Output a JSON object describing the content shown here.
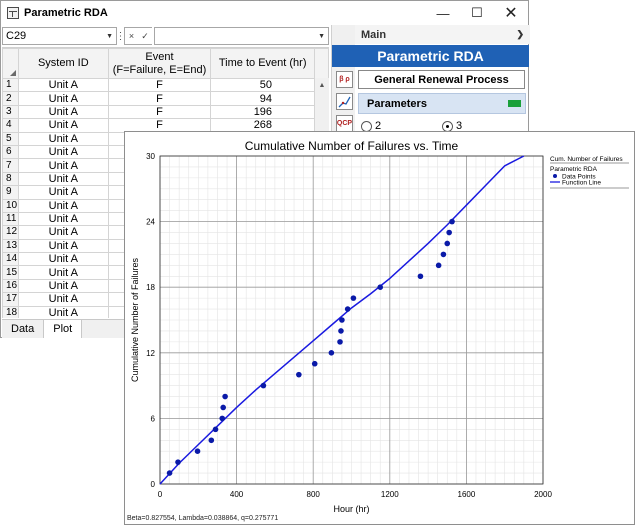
{
  "window": {
    "title": "Parametric RDA"
  },
  "formula_bar": {
    "cell_ref": "C29",
    "cancel_symbol": "×",
    "accept_symbol": "✓"
  },
  "grid": {
    "columns": [
      "System ID",
      "Event\n(F=Failure, E=End)",
      "Time to Event (hr)"
    ],
    "rows": [
      {
        "n": "1",
        "system": "Unit A",
        "event": "F",
        "time": "50"
      },
      {
        "n": "2",
        "system": "Unit A",
        "event": "F",
        "time": "94"
      },
      {
        "n": "3",
        "system": "Unit A",
        "event": "F",
        "time": "196"
      },
      {
        "n": "4",
        "system": "Unit A",
        "event": "F",
        "time": "268"
      },
      {
        "n": "5",
        "system": "Unit A",
        "event": "",
        "time": ""
      },
      {
        "n": "6",
        "system": "Unit A",
        "event": "",
        "time": ""
      },
      {
        "n": "7",
        "system": "Unit A",
        "event": "",
        "time": ""
      },
      {
        "n": "8",
        "system": "Unit A",
        "event": "",
        "time": ""
      },
      {
        "n": "9",
        "system": "Unit A",
        "event": "",
        "time": ""
      },
      {
        "n": "10",
        "system": "Unit A",
        "event": "",
        "time": ""
      },
      {
        "n": "11",
        "system": "Unit A",
        "event": "",
        "time": ""
      },
      {
        "n": "12",
        "system": "Unit A",
        "event": "",
        "time": ""
      },
      {
        "n": "13",
        "system": "Unit A",
        "event": "",
        "time": ""
      },
      {
        "n": "14",
        "system": "Unit A",
        "event": "",
        "time": ""
      },
      {
        "n": "15",
        "system": "Unit A",
        "event": "",
        "time": ""
      },
      {
        "n": "16",
        "system": "Unit A",
        "event": "",
        "time": ""
      },
      {
        "n": "17",
        "system": "Unit A",
        "event": "",
        "time": ""
      },
      {
        "n": "18",
        "system": "Unit A",
        "event": "",
        "time": ""
      }
    ]
  },
  "sheet_tabs": [
    "Data",
    "Plot"
  ],
  "panel": {
    "header": "Main",
    "banner": "Parametric RDA",
    "model": "General Renewal Process",
    "parameters_label": "Parameters",
    "radio_options": [
      {
        "label": "2",
        "selected": false
      },
      {
        "label": "3",
        "selected": true
      }
    ],
    "tools": [
      "β ρ",
      "",
      "QCP"
    ]
  },
  "colors": {
    "banner": "#1f61b5",
    "series": "#0a1aa8",
    "status": "#1aa03a"
  },
  "plot": {
    "footer": "Beta=0.827554, Lambda=0.038864, q=0.275771",
    "legend": {
      "title": "Cum. Number of Failures",
      "group": "Parametric RDA",
      "points_label": "Data Points",
      "line_label": "Function Line"
    }
  },
  "chart_data": {
    "type": "scatter",
    "title": "Cumulative Number of Failures vs. Time",
    "xlabel": "Hour (hr)",
    "ylabel": "Cumulative Number of Failures",
    "xlim": [
      0,
      2000
    ],
    "ylim": [
      0,
      30
    ],
    "xticks": [
      0,
      400,
      800,
      1200,
      1600,
      2000
    ],
    "yticks": [
      0,
      6,
      12,
      18,
      24,
      30
    ],
    "grid": true,
    "legend_position": "top-right",
    "series": [
      {
        "name": "Data Points",
        "kind": "scatter",
        "x": [
          50,
          94,
          196,
          268,
          290,
          325,
          330,
          340,
          540,
          725,
          808,
          895,
          940,
          945,
          950,
          980,
          1010,
          1150,
          1360,
          1455,
          1480,
          1500,
          1510,
          1525
        ],
        "y": [
          1,
          2,
          3,
          4,
          5,
          6,
          7,
          8,
          9,
          10,
          11,
          12,
          13,
          14,
          15,
          16,
          17,
          18,
          19,
          20,
          21,
          22,
          23,
          24
        ]
      },
      {
        "name": "Function Line",
        "kind": "line",
        "x": [
          0,
          100,
          200,
          300,
          400,
          500,
          600,
          700,
          800,
          900,
          1000,
          1100,
          1200,
          1300,
          1400,
          1500,
          1600,
          1700,
          1800,
          1900
        ],
        "y": [
          0,
          1.9,
          3.6,
          5.3,
          7.0,
          8.6,
          10.1,
          11.6,
          13.1,
          14.6,
          16.1,
          17.4,
          18.8,
          20.4,
          22.0,
          23.7,
          25.5,
          27.3,
          29.1,
          30
        ]
      }
    ]
  }
}
